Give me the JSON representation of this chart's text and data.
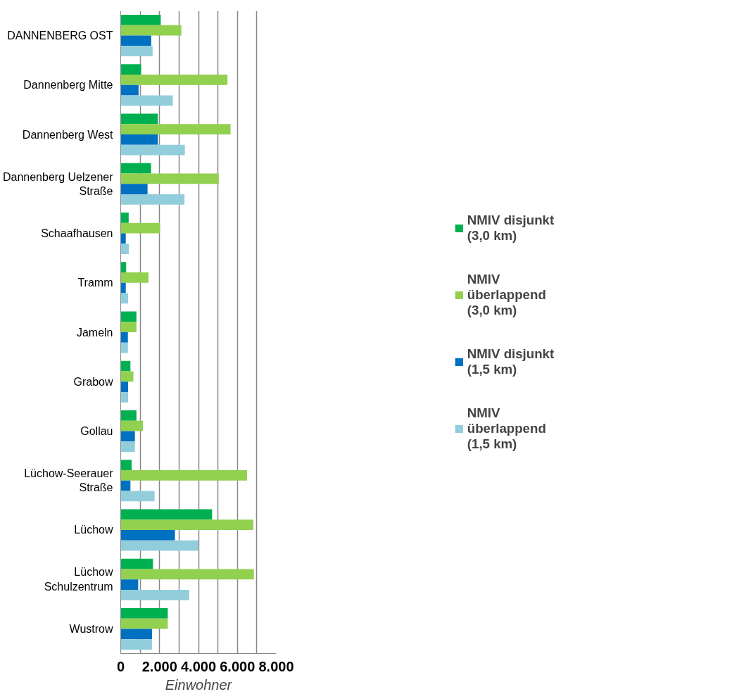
{
  "chart_data": {
    "type": "bar",
    "orientation": "horizontal",
    "xlabel": "Einwohner",
    "categories": [
      "DANNENBERG OST",
      "Dannenberg Mitte",
      "Dannenberg West",
      "Dannenberg Uelzener\nStraße",
      "Schaafhausen",
      "Tramm",
      "Jameln",
      "Grabow",
      "Gollau",
      "Lüchow-Seerauer\nStraße",
      "Lüchow",
      "Lüchow\nSchulzentrum",
      "Wustrow"
    ],
    "series": [
      {
        "name": "NMIV disjunkt (3,0 km)",
        "color": "#00b050",
        "values": [
          2060,
          1050,
          1910,
          1560,
          410,
          280,
          810,
          500,
          810,
          560,
          4700,
          1660,
          2420
        ]
      },
      {
        "name": "NMIV überlappend (3,0 km)",
        "color": "#92d050",
        "values": [
          3120,
          5490,
          5650,
          5040,
          2020,
          1430,
          810,
          650,
          1140,
          6500,
          6820,
          6850,
          2420
        ]
      },
      {
        "name": "NMIV disjunkt (1,5 km)",
        "color": "#0070c0",
        "values": [
          1570,
          920,
          1910,
          1380,
          260,
          260,
          370,
          380,
          730,
          500,
          2790,
          900,
          1610
        ]
      },
      {
        "name": "NMIV überlappend (1,5 km)",
        "color": "#92cddc",
        "values": [
          1640,
          2680,
          3300,
          3280,
          420,
          380,
          370,
          380,
          730,
          1740,
          3990,
          3520,
          1610
        ]
      }
    ],
    "xlim": [
      0,
      8000
    ],
    "xticks": [
      {
        "value": 0,
        "label": "0"
      },
      {
        "value": 1000,
        "label": null
      },
      {
        "value": 2000,
        "label": "2.000"
      },
      {
        "value": 3000,
        "label": null
      },
      {
        "value": 4000,
        "label": "4.000"
      },
      {
        "value": 5000,
        "label": null
      },
      {
        "value": 6000,
        "label": "6.000"
      },
      {
        "value": 7000,
        "label": null
      },
      {
        "value": 8000,
        "label": "8.000"
      }
    ],
    "grid": "x",
    "legend": "right"
  }
}
